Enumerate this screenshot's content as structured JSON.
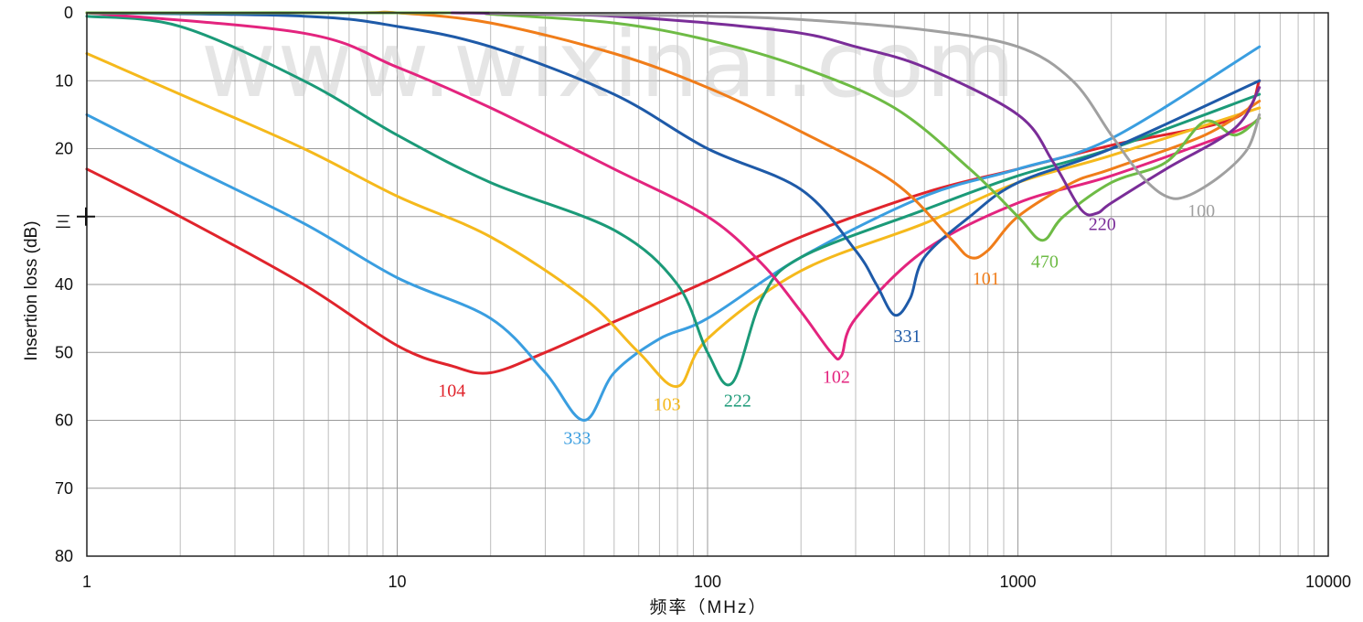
{
  "watermark": "www.wixinal.com",
  "chart_data": {
    "type": "line",
    "xlabel": "频率（MHz）",
    "ylabel": "Insertion loss (dB)",
    "x_scale": "log",
    "xlim": [
      1,
      10000
    ],
    "ylim": [
      0,
      80
    ],
    "y_inverted": true,
    "grid": true,
    "x_ticks": [
      "1",
      "10",
      "100",
      "1000",
      "10000"
    ],
    "y_ticks": [
      "0",
      "10",
      "20",
      "30",
      "40",
      "50",
      "60",
      "70",
      "80"
    ],
    "y_tick_30_label": "三",
    "series": [
      {
        "name": "104",
        "color": "#e0242c",
        "x": [
          1,
          2,
          5,
          10,
          15,
          20,
          30,
          50,
          100,
          200,
          500,
          1000,
          2000,
          5000,
          6000
        ],
        "y": [
          23,
          30,
          40,
          49,
          52,
          53,
          50,
          45.5,
          39.5,
          33,
          26.5,
          23,
          19.5,
          15.5,
          10
        ]
      },
      {
        "name": "333",
        "color": "#3a9ee0",
        "x": [
          1,
          2,
          5,
          10,
          20,
          30,
          40,
          50,
          70,
          100,
          200,
          500,
          1000,
          2000,
          6000
        ],
        "y": [
          15,
          22,
          31,
          39,
          45,
          53,
          60,
          53,
          48,
          45,
          36,
          27,
          23,
          18.5,
          5
        ]
      },
      {
        "name": "103",
        "color": "#f5b91c",
        "x": [
          1,
          2,
          5,
          10,
          20,
          40,
          60,
          80,
          100,
          200,
          500,
          1000,
          2000,
          6000
        ],
        "y": [
          6,
          12,
          20,
          27,
          33,
          42,
          50,
          55,
          48,
          38,
          31,
          25,
          21,
          14
        ]
      },
      {
        "name": "222",
        "color": "#1b9a78",
        "x": [
          1,
          2,
          5,
          10,
          20,
          50,
          80,
          100,
          120,
          150,
          200,
          500,
          1000,
          2000,
          6000
        ],
        "y": [
          0.5,
          2,
          10,
          18,
          25,
          32,
          40,
          50,
          54.5,
          42,
          36,
          29,
          24,
          20,
          12
        ]
      },
      {
        "name": "102",
        "color": "#e3247e",
        "x": [
          1,
          5,
          10,
          20,
          50,
          100,
          150,
          200,
          250,
          270,
          300,
          500,
          1000,
          2000,
          5000,
          6000
        ],
        "y": [
          0,
          3,
          8,
          14,
          23,
          30,
          37,
          44,
          50,
          50.5,
          45,
          35,
          28,
          24,
          17.5,
          15.5
        ]
      },
      {
        "name": "331",
        "color": "#1e5aa8",
        "x": [
          1,
          5,
          10,
          20,
          50,
          100,
          200,
          300,
          350,
          400,
          450,
          500,
          700,
          1000,
          2000,
          6000
        ],
        "y": [
          0,
          0.5,
          2,
          5,
          12,
          20,
          26,
          35,
          40,
          44.5,
          42,
          36,
          30,
          25,
          20,
          10
        ]
      },
      {
        "name": "101",
        "color": "#f07d1a",
        "x": [
          1,
          7,
          10,
          20,
          50,
          100,
          200,
          400,
          600,
          700,
          800,
          1000,
          1500,
          2000,
          4000,
          6000
        ],
        "y": [
          0,
          0,
          0,
          1.5,
          6,
          11,
          17.5,
          25,
          33,
          36,
          35,
          30,
          25,
          23,
          18,
          13
        ]
      },
      {
        "name": "470",
        "color": "#6ebb45",
        "x": [
          1,
          17,
          20,
          50,
          100,
          200,
          400,
          700,
          1000,
          1200,
          1400,
          2000,
          3000,
          4000,
          5000,
          6000
        ],
        "y": [
          0,
          0,
          0.2,
          1.5,
          4,
          8,
          14,
          23,
          30,
          33.5,
          30,
          25,
          22,
          16,
          18,
          15.5
        ]
      },
      {
        "name": "220",
        "color": "#7a2d98",
        "x": [
          15,
          30,
          50,
          100,
          200,
          300,
          500,
          1000,
          1300,
          1600,
          1800,
          2000,
          3000,
          5000,
          6000
        ],
        "y": [
          0,
          0.2,
          0.5,
          1.5,
          3,
          5,
          8,
          15,
          22,
          29,
          29.5,
          28,
          23,
          17,
          11
        ]
      },
      {
        "name": "100",
        "color": "#a0a0a0",
        "x": [
          20,
          50,
          100,
          200,
          500,
          1000,
          1500,
          2000,
          2500,
          3000,
          3500,
          4500,
          5500,
          6000
        ],
        "y": [
          0,
          0.3,
          0.5,
          1,
          2.5,
          5,
          10,
          18,
          24,
          27,
          27,
          24,
          20,
          15
        ]
      }
    ],
    "labels": [
      {
        "text": "104",
        "color": "#e0242c",
        "x": 15,
        "y": 56.5
      },
      {
        "text": "333",
        "color": "#3a9ee0",
        "x": 38,
        "y": 63.5
      },
      {
        "text": "103",
        "color": "#f5b91c",
        "x": 74,
        "y": 58.5
      },
      {
        "text": "222",
        "color": "#1b9a78",
        "x": 125,
        "y": 58
      },
      {
        "text": "102",
        "color": "#e3247e",
        "x": 260,
        "y": 54.5
      },
      {
        "text": "331",
        "color": "#1e5aa8",
        "x": 440,
        "y": 48.5
      },
      {
        "text": "101",
        "color": "#f07d1a",
        "x": 790,
        "y": 40
      },
      {
        "text": "470",
        "color": "#6ebb45",
        "x": 1220,
        "y": 37.5
      },
      {
        "text": "220",
        "color": "#7a2d98",
        "x": 1870,
        "y": 32
      },
      {
        "text": "100",
        "color": "#a0a0a0",
        "x": 3900,
        "y": 30
      }
    ]
  }
}
